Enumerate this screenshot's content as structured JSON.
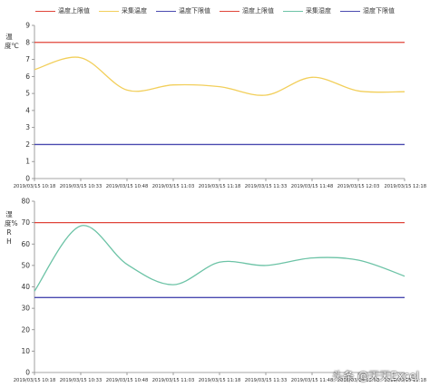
{
  "chart_data": [
    {
      "type": "line",
      "legend": [
        "温度上限值",
        "采集温度",
        "温度下限值"
      ],
      "ylabel": "温度℃",
      "ylim": [
        0,
        9
      ],
      "yticks": [
        0,
        1,
        2,
        3,
        4,
        5,
        6,
        7,
        8,
        9
      ],
      "categories": [
        "2019/03/15 10:18",
        "2019/03/15 10:33",
        "2019/03/15 10:48",
        "2019/03/15 11:03",
        "2019/03/15 11:18",
        "2019/03/15 11:33",
        "2019/03/15 11:48",
        "2019/03/15 12:03",
        "2019/03/15 12:18"
      ],
      "series": [
        {
          "name": "温度上限值",
          "color": "#e0453a",
          "values": [
            8,
            8,
            8,
            8,
            8,
            8,
            8,
            8,
            8
          ]
        },
        {
          "name": "采集温度",
          "color": "#f2cf5b",
          "values": [
            6.4,
            7.1,
            5.2,
            5.5,
            5.4,
            4.9,
            5.95,
            5.15,
            5.1
          ]
        },
        {
          "name": "温度下限值",
          "color": "#4a4ab0",
          "values": [
            2,
            2,
            2,
            2,
            2,
            2,
            2,
            2,
            2
          ]
        }
      ]
    },
    {
      "type": "line",
      "legend": [],
      "ylabel": "湿度%RH",
      "ylim": [
        0,
        80
      ],
      "yticks": [
        0,
        10,
        20,
        30,
        40,
        50,
        60,
        70,
        80
      ],
      "categories": [
        "2019/03/15 10:18",
        "2019/03/15 10:33",
        "2019/03/15 10:48",
        "2019/03/15 11:03",
        "2019/03/15 11:18",
        "2019/03/15 11:33",
        "2019/03/15 11:48",
        "2019/03/15 12:03",
        "2019/03/15 12:18"
      ],
      "series": [
        {
          "name": "湿度上限值",
          "color": "#e0453a",
          "values": [
            70,
            70,
            70,
            70,
            70,
            70,
            70,
            70,
            70
          ]
        },
        {
          "name": "采集湿度",
          "color": "#6cc3a6",
          "values": [
            38,
            68.5,
            50.5,
            41,
            51.5,
            50,
            53.5,
            52.5,
            45
          ]
        },
        {
          "name": "湿度下限值",
          "color": "#4a4ab0",
          "values": [
            35,
            35,
            35,
            35,
            35,
            35,
            35,
            35,
            35
          ]
        }
      ]
    }
  ],
  "top_legend": [
    {
      "label": "温度上限值",
      "color": "#e0453a"
    },
    {
      "label": "采集温度",
      "color": "#f2cf5b"
    },
    {
      "label": "温度下限值",
      "color": "#4a4ab0"
    },
    {
      "label": "湿度上限值",
      "color": "#e0453a"
    },
    {
      "label": "采集湿度",
      "color": "#6cc3a6"
    },
    {
      "label": "湿度下限值",
      "color": "#4a4ab0"
    }
  ],
  "ylabels": {
    "top": "温度℃",
    "bottom": "湿度%RH"
  },
  "watermark": "头条 @天天Excel"
}
